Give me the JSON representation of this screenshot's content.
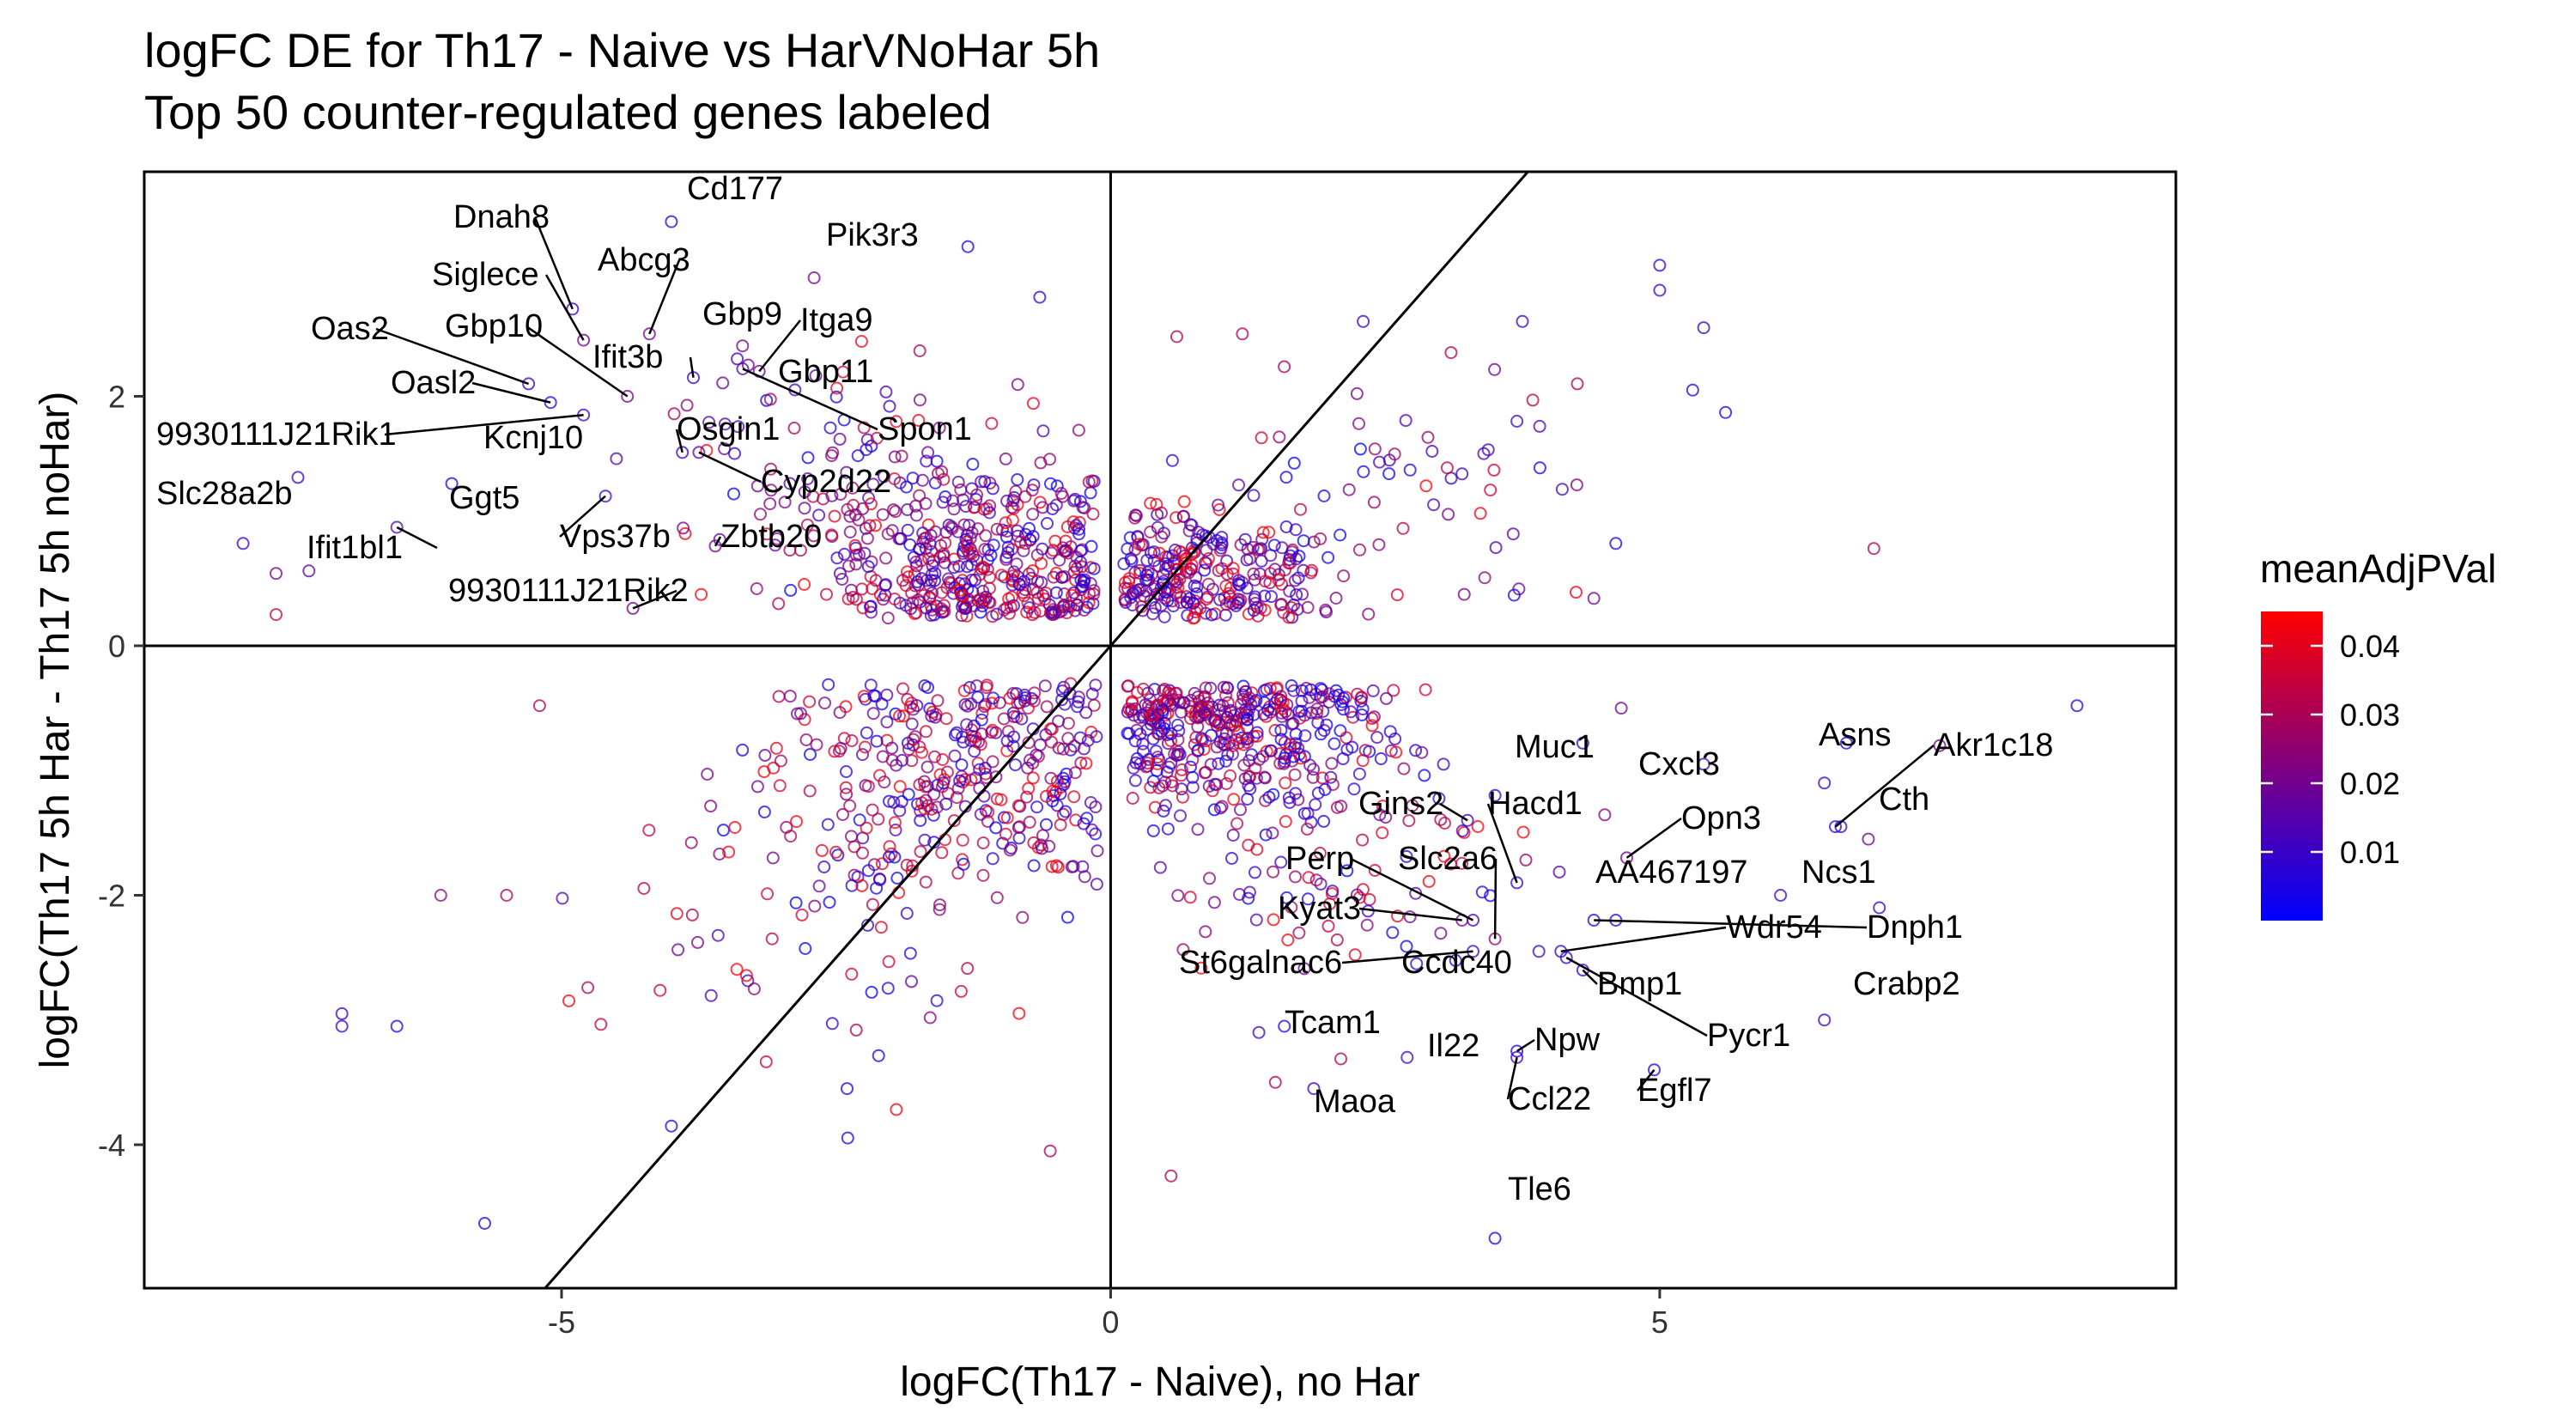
{
  "chart_data": {
    "type": "scatter",
    "title": "logFC DE for Th17 - Naive vs HarVNoHar 5h",
    "subtitle": "Top 50 counter-regulated genes labeled",
    "xlabel": "logFC(Th17 - Naive), no Har",
    "ylabel": "logFC(Th17 5h Har - Th17 5h noHar)",
    "xlim": [
      -8.8,
      9.7
    ],
    "ylim": [
      -5.15,
      3.8
    ],
    "x_ticks": [
      -5,
      0,
      5
    ],
    "y_ticks": [
      -4,
      -2,
      0,
      2
    ],
    "reference_lines": [
      "x = 0",
      "y = 0",
      "y = x"
    ],
    "grid": false,
    "marker": "open circle",
    "color_scale": {
      "name": "meanAdjPVal",
      "low_color": "#0000ff",
      "high_color": "#ff0000",
      "min": 0.0,
      "max": 0.045,
      "ticks": [
        0.01,
        0.02,
        0.03,
        0.04
      ],
      "tick_labels": [
        "0.01",
        "0.02",
        "0.03",
        "0.04"
      ]
    },
    "legend_position": "right",
    "labeled_genes": [
      {
        "gene": "Cd177",
        "x": -4.0,
        "y": 3.4,
        "p": 0.008
      },
      {
        "gene": "Dnah8",
        "x": -4.9,
        "y": 2.7,
        "p": 0.01
      },
      {
        "gene": "Pik3r3",
        "x": -1.3,
        "y": 3.2,
        "p": 0.006
      },
      {
        "gene": "Siglece",
        "x": -4.8,
        "y": 2.45,
        "p": 0.02
      },
      {
        "gene": "Abcg3",
        "x": -4.2,
        "y": 2.5,
        "p": 0.02
      },
      {
        "gene": "Oas2",
        "x": -5.3,
        "y": 2.1,
        "p": 0.01
      },
      {
        "gene": "Gbp10",
        "x": -4.4,
        "y": 2.0,
        "p": 0.02
      },
      {
        "gene": "Gbp9",
        "x": -3.4,
        "y": 2.3,
        "p": 0.01
      },
      {
        "gene": "Itga9",
        "x": -3.2,
        "y": 2.2,
        "p": 0.02
      },
      {
        "gene": "Oasl2",
        "x": -5.1,
        "y": 1.95,
        "p": 0.005
      },
      {
        "gene": "Ifit3b",
        "x": -3.8,
        "y": 2.15,
        "p": 0.01
      },
      {
        "gene": "Gbp11",
        "x": -3.3,
        "y": 2.25,
        "p": 0.02
      },
      {
        "gene": "9930111J21Rik1",
        "x": -4.8,
        "y": 1.85,
        "p": 0.01
      },
      {
        "gene": "Kcnj10",
        "x": -4.5,
        "y": 1.5,
        "p": 0.015
      },
      {
        "gene": "Osgin1",
        "x": -3.9,
        "y": 1.55,
        "p": 0.01
      },
      {
        "gene": "Spon1",
        "x": -3.35,
        "y": 2.22,
        "p": 0.015
      },
      {
        "gene": "Cyp2d22",
        "x": -3.75,
        "y": 1.55,
        "p": 0.015
      },
      {
        "gene": "Slc28a2b",
        "x": -7.9,
        "y": 0.82,
        "p": 0.01
      },
      {
        "gene": "Ggt5",
        "x": -6.0,
        "y": 1.3,
        "p": 0.005
      },
      {
        "gene": "Ifit1bl1",
        "x": -6.5,
        "y": 0.95,
        "p": 0.015
      },
      {
        "gene": "Vps37b",
        "x": -4.6,
        "y": 1.2,
        "p": 0.01
      },
      {
        "gene": "Zbtb20",
        "x": -3.6,
        "y": 0.8,
        "p": 0.02
      },
      {
        "gene": "9930111J21Rik2",
        "x": -4.35,
        "y": 0.3,
        "p": 0.02
      },
      {
        "gene": "Muc1",
        "x": 3.5,
        "y": -1.2,
        "p": 0.005
      },
      {
        "gene": "Cxcl3",
        "x": 5.4,
        "y": -0.95,
        "p": 0.01
      },
      {
        "gene": "Asns",
        "x": 6.5,
        "y": -1.1,
        "p": 0.01
      },
      {
        "gene": "Akr1c18",
        "x": 6.6,
        "y": -1.45,
        "p": 0.008
      },
      {
        "gene": "Cth",
        "x": 6.65,
        "y": -1.45,
        "p": 0.008
      },
      {
        "gene": "Gins2",
        "x": 3.25,
        "y": -1.4,
        "p": 0.01
      },
      {
        "gene": "Hacd1",
        "x": 3.7,
        "y": -1.9,
        "p": 0.01
      },
      {
        "gene": "Opn3",
        "x": 4.7,
        "y": -1.7,
        "p": 0.02
      },
      {
        "gene": "Ncs1",
        "x": 6.9,
        "y": -1.55,
        "p": 0.02
      },
      {
        "gene": "Perp",
        "x": 3.3,
        "y": -2.2,
        "p": 0.01
      },
      {
        "gene": "Slc2a6",
        "x": 3.5,
        "y": -2.35,
        "p": 0.025
      },
      {
        "gene": "AA467197",
        "x": 4.6,
        "y": -2.2,
        "p": 0.005
      },
      {
        "gene": "Kyat3",
        "x": 3.2,
        "y": -2.2,
        "p": 0.02
      },
      {
        "gene": "Dnph1",
        "x": 4.4,
        "y": -2.2,
        "p": 0.005
      },
      {
        "gene": "Wdr54",
        "x": 4.1,
        "y": -2.45,
        "p": 0.008
      },
      {
        "gene": "St6galnac6",
        "x": 3.3,
        "y": -2.45,
        "p": 0.01
      },
      {
        "gene": "Ccdc40",
        "x": 3.9,
        "y": -2.45,
        "p": 0.01
      },
      {
        "gene": "Bmp1",
        "x": 4.3,
        "y": -2.6,
        "p": 0.008
      },
      {
        "gene": "Crabp2",
        "x": 6.5,
        "y": -3.0,
        "p": 0.01
      },
      {
        "gene": "Pycr1",
        "x": 4.15,
        "y": -2.5,
        "p": 0.008
      },
      {
        "gene": "Tcam1",
        "x": 1.35,
        "y": -3.1,
        "p": 0.01
      },
      {
        "gene": "Npw",
        "x": 3.7,
        "y": -3.25,
        "p": 0.005
      },
      {
        "gene": "Il22",
        "x": 2.7,
        "y": -3.3,
        "p": 0.01
      },
      {
        "gene": "Egfl7",
        "x": 4.95,
        "y": -3.4,
        "p": 0.005
      },
      {
        "gene": "Ccl22",
        "x": 3.7,
        "y": -3.3,
        "p": 0.01
      },
      {
        "gene": "Maoa",
        "x": 1.85,
        "y": -3.55,
        "p": 0.01
      },
      {
        "gene": "Tle6",
        "x": 3.5,
        "y": -4.75,
        "p": 0.005
      }
    ],
    "outlier_points": [
      {
        "x": 5.0,
        "y": 3.05,
        "p": 0.01
      },
      {
        "x": 5.0,
        "y": 2.85,
        "p": 0.01
      },
      {
        "x": 5.4,
        "y": 2.55,
        "p": 0.01
      },
      {
        "x": 5.3,
        "y": 2.05,
        "p": 0.005
      },
      {
        "x": 5.6,
        "y": 1.87,
        "p": 0.005
      },
      {
        "x": 4.25,
        "y": 2.1,
        "p": 0.03
      },
      {
        "x": 3.75,
        "y": 2.6,
        "p": 0.01
      },
      {
        "x": 3.7,
        "y": 1.8,
        "p": 0.01
      },
      {
        "x": 3.1,
        "y": 2.35,
        "p": 0.03
      },
      {
        "x": 2.3,
        "y": 2.6,
        "p": 0.01
      },
      {
        "x": 1.2,
        "y": 2.5,
        "p": 0.03
      },
      {
        "x": 6.95,
        "y": 0.78,
        "p": 0.03
      },
      {
        "x": 4.6,
        "y": 0.82,
        "p": 0.005
      },
      {
        "x": 4.4,
        "y": 0.38,
        "p": 0.02
      },
      {
        "x": 8.8,
        "y": -0.48,
        "p": 0.005
      },
      {
        "x": 7.0,
        "y": -2.1,
        "p": 0.01
      },
      {
        "x": 6.1,
        "y": -2.0,
        "p": 0.01
      },
      {
        "x": -7.0,
        "y": -2.95,
        "p": 0.01
      },
      {
        "x": -6.5,
        "y": -3.05,
        "p": 0.005
      },
      {
        "x": -7.0,
        "y": -3.05,
        "p": 0.01
      },
      {
        "x": -5.7,
        "y": -4.63,
        "p": 0.005
      },
      {
        "x": -6.1,
        "y": -2.0,
        "p": 0.025
      },
      {
        "x": -5.5,
        "y": -2.0,
        "p": 0.03
      },
      {
        "x": -5.2,
        "y": -0.48,
        "p": 0.03
      },
      {
        "x": -7.6,
        "y": 0.25,
        "p": 0.035
      },
      {
        "x": -7.3,
        "y": 0.6,
        "p": 0.015
      },
      {
        "x": -7.6,
        "y": 0.58,
        "p": 0.02
      },
      {
        "x": -4.0,
        "y": -3.85,
        "p": 0.005
      },
      {
        "x": -2.4,
        "y": -3.55,
        "p": 0.005
      },
      {
        "x": 0.55,
        "y": -4.25,
        "p": 0.03
      },
      {
        "x": -0.55,
        "y": -4.05,
        "p": 0.03
      },
      {
        "x": 1.5,
        "y": -3.5,
        "p": 0.03
      },
      {
        "x": 6.7,
        "y": -0.78,
        "p": 0.005
      },
      {
        "x": 7.55,
        "y": -0.8,
        "p": 0.02
      },
      {
        "x": 4.3,
        "y": -0.78,
        "p": 0.005
      },
      {
        "x": 4.65,
        "y": -0.5,
        "p": 0.02
      },
      {
        "x": -7.4,
        "y": 1.35,
        "p": 0.01
      },
      {
        "x": -2.7,
        "y": 2.95,
        "p": 0.02
      }
    ]
  }
}
